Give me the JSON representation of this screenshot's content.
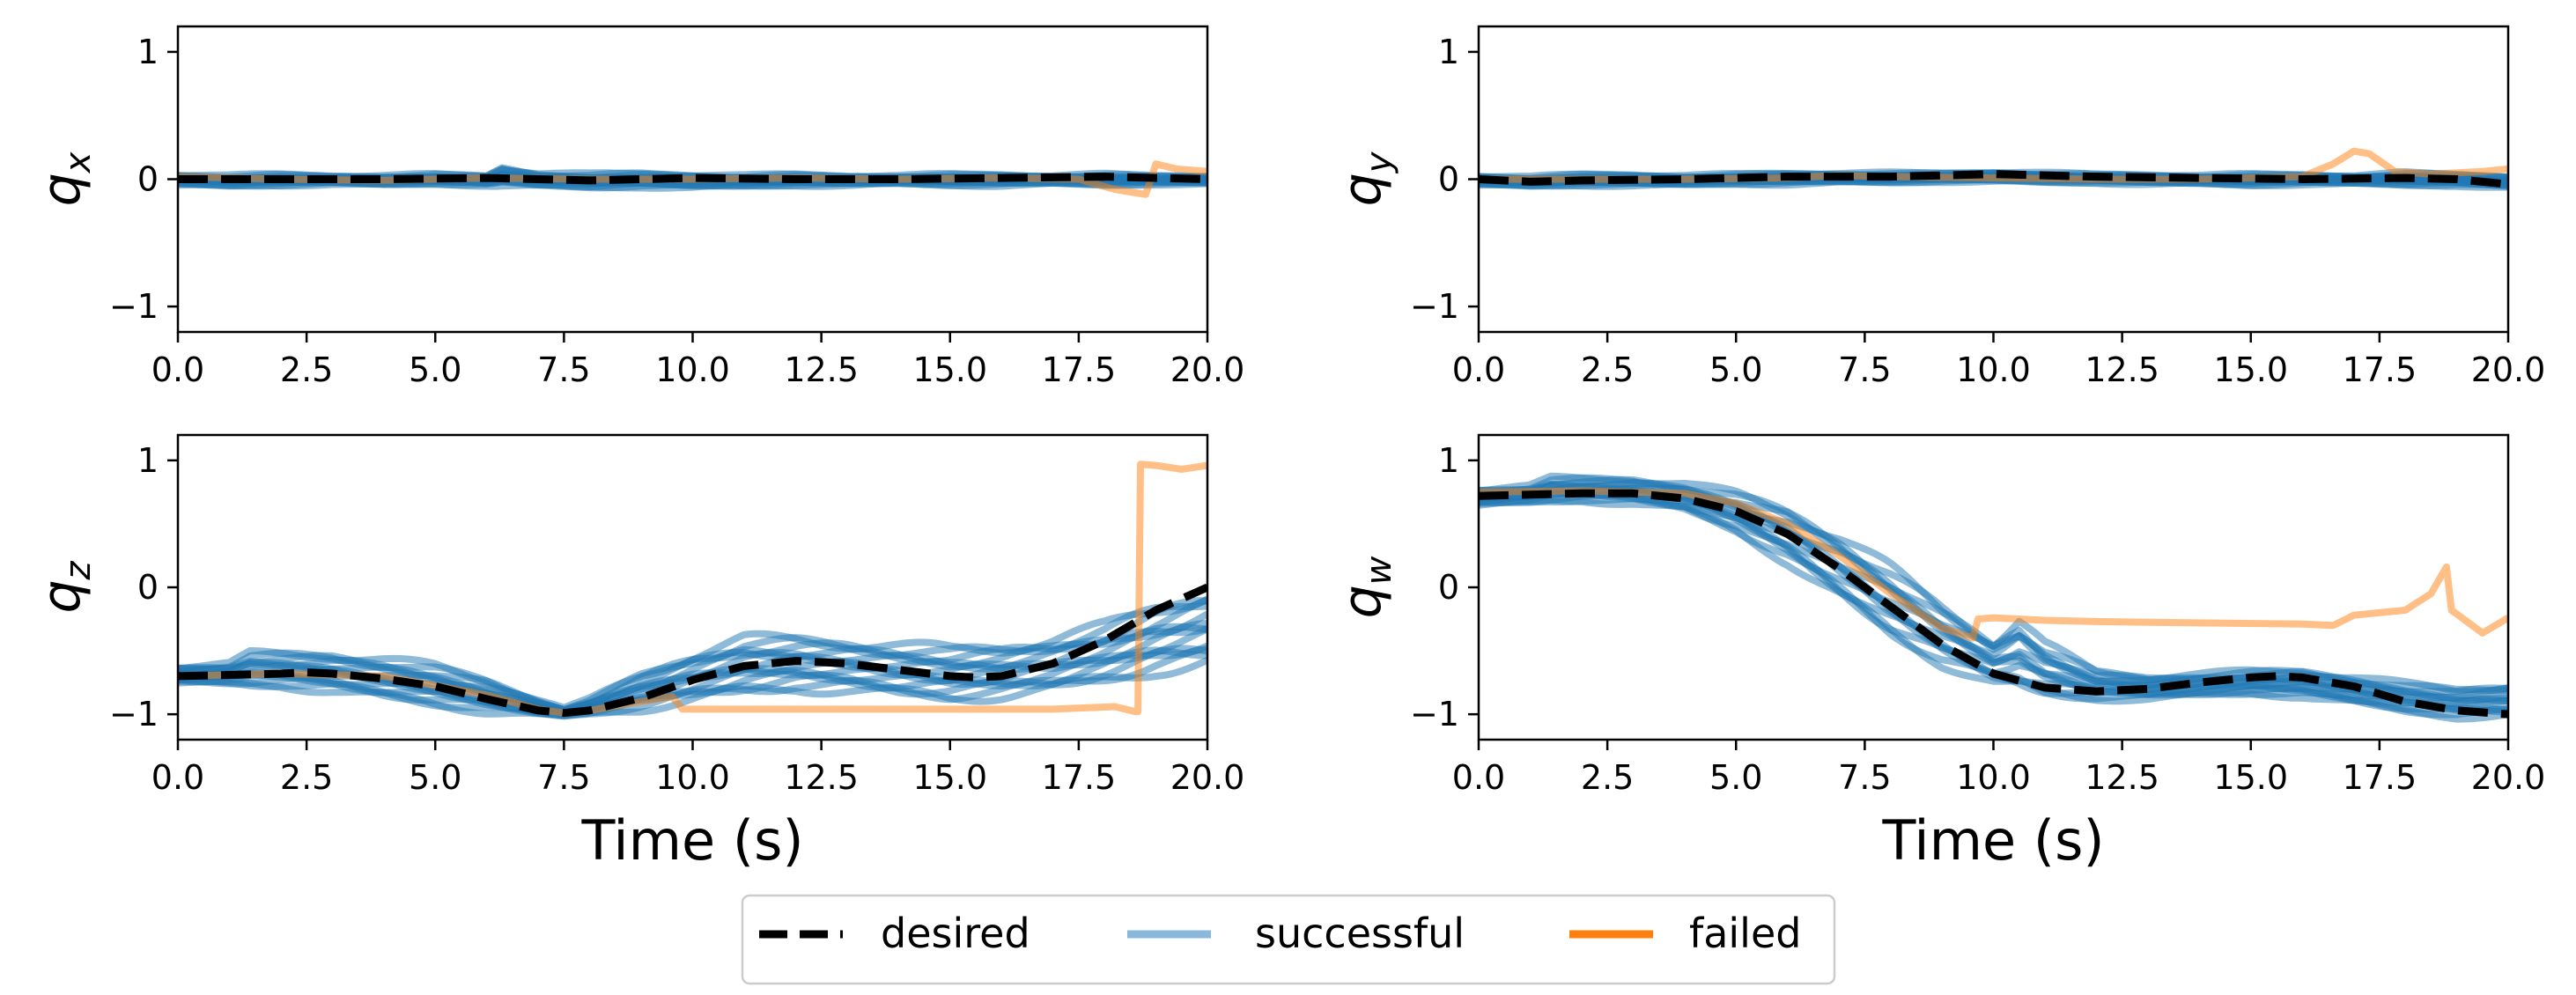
{
  "chart_data": [
    {
      "type": "line",
      "panel": "qx",
      "ylabel": {
        "main": "q",
        "sub": "x"
      },
      "xlabel": "",
      "xlim": [
        0,
        20
      ],
      "ylim": [
        -1.2,
        1.2
      ],
      "xticks": [
        "0.0",
        "2.5",
        "5.0",
        "7.5",
        "10.0",
        "12.5",
        "15.0",
        "17.5",
        "20.0"
      ],
      "yticks": [
        "−1",
        "0",
        "1"
      ],
      "series": [
        {
          "name": "desired",
          "style": "dashed",
          "color": "#000000",
          "x": [
            0,
            2,
            4,
            6,
            8,
            10,
            12,
            14,
            16,
            18,
            20
          ],
          "values": [
            0,
            0,
            0,
            0.01,
            -0.01,
            0.01,
            0.0,
            0.0,
            0.01,
            0.02,
            0.0
          ]
        },
        {
          "name": "successful",
          "style": "band",
          "color": "#1f77b4",
          "x": [
            0,
            1,
            2,
            3,
            4,
            5,
            6,
            6.3,
            7,
            8,
            9,
            10,
            11,
            12,
            13,
            14,
            15,
            16,
            17,
            18,
            19,
            20
          ],
          "upper": [
            0.04,
            0.03,
            0.04,
            0.03,
            0.03,
            0.04,
            0.03,
            0.1,
            0.05,
            0.04,
            0.05,
            0.04,
            0.03,
            0.04,
            0.03,
            0.03,
            0.04,
            0.04,
            0.03,
            0.04,
            0.03,
            0.03
          ],
          "lower": [
            -0.05,
            -0.06,
            -0.05,
            -0.04,
            -0.05,
            -0.04,
            -0.05,
            -0.05,
            -0.06,
            -0.07,
            -0.06,
            -0.07,
            -0.06,
            -0.05,
            -0.05,
            -0.04,
            -0.05,
            -0.05,
            -0.04,
            -0.05,
            -0.04,
            -0.04
          ]
        },
        {
          "name": "failed",
          "style": "solid",
          "color": "#ff7f0e",
          "x": [
            0,
            2,
            4,
            6,
            8,
            10,
            12,
            14,
            16,
            17.5,
            18.2,
            18.8,
            19.0,
            19.4,
            20
          ],
          "values": [
            0.02,
            0.0,
            -0.01,
            0.01,
            0.0,
            0.0,
            0.01,
            0.0,
            0.01,
            0.0,
            -0.08,
            -0.12,
            0.12,
            0.08,
            0.06
          ]
        }
      ]
    },
    {
      "type": "line",
      "panel": "qy",
      "ylabel": {
        "main": "q",
        "sub": "y"
      },
      "xlabel": "",
      "xlim": [
        0,
        20
      ],
      "ylim": [
        -1.2,
        1.2
      ],
      "xticks": [
        "0.0",
        "2.5",
        "5.0",
        "7.5",
        "10.0",
        "12.5",
        "15.0",
        "17.5",
        "20.0"
      ],
      "yticks": [
        "−1",
        "0",
        "1"
      ],
      "series": [
        {
          "name": "desired",
          "style": "dashed",
          "color": "#000000",
          "x": [
            0,
            1,
            2,
            4,
            6,
            8,
            10,
            12,
            14,
            16,
            18,
            19,
            20
          ],
          "values": [
            0.0,
            -0.02,
            -0.01,
            0.0,
            0.02,
            0.02,
            0.04,
            0.02,
            0.01,
            0.0,
            0.01,
            0.0,
            -0.04
          ]
        },
        {
          "name": "successful",
          "style": "band",
          "color": "#1f77b4",
          "x": [
            0,
            1,
            2,
            3,
            4,
            5,
            6,
            7,
            8,
            9,
            10,
            11,
            12,
            13,
            14,
            15,
            16,
            17,
            18,
            19,
            20
          ],
          "upper": [
            0.03,
            0.02,
            0.04,
            0.04,
            0.03,
            0.04,
            0.05,
            0.05,
            0.05,
            0.05,
            0.06,
            0.05,
            0.04,
            0.04,
            0.03,
            0.04,
            0.04,
            0.03,
            0.05,
            0.04,
            0.03
          ],
          "lower": [
            -0.05,
            -0.06,
            -0.05,
            -0.05,
            -0.05,
            -0.04,
            -0.04,
            -0.03,
            -0.03,
            -0.02,
            -0.02,
            -0.03,
            -0.03,
            -0.04,
            -0.04,
            -0.05,
            -0.04,
            -0.04,
            -0.05,
            -0.05,
            -0.07
          ]
        },
        {
          "name": "failed",
          "style": "solid",
          "color": "#ff7f0e",
          "x": [
            0,
            2,
            4,
            6,
            7,
            8,
            10,
            12,
            14,
            16,
            16.6,
            17.0,
            17.3,
            17.8,
            18.5,
            19.5,
            20
          ],
          "values": [
            0.0,
            0.0,
            0.0,
            0.01,
            0.03,
            0.02,
            0.01,
            0.0,
            0.0,
            0.02,
            0.12,
            0.22,
            0.2,
            0.06,
            0.04,
            0.06,
            0.08
          ]
        }
      ]
    },
    {
      "type": "line",
      "panel": "qz",
      "ylabel": {
        "main": "q",
        "sub": "z"
      },
      "xlabel": "Time (s)",
      "xlim": [
        0,
        20
      ],
      "ylim": [
        -1.2,
        1.2
      ],
      "xticks": [
        "0.0",
        "2.5",
        "5.0",
        "7.5",
        "10.0",
        "12.5",
        "15.0",
        "17.5",
        "20.0"
      ],
      "yticks": [
        "−1",
        "0",
        "1"
      ],
      "series": [
        {
          "name": "desired",
          "style": "dashed",
          "color": "#000000",
          "x": [
            0,
            1,
            2,
            2.5,
            3,
            4,
            5,
            6,
            7,
            7.5,
            8,
            9,
            10,
            11,
            12,
            13,
            14,
            15,
            15.5,
            16,
            17,
            18,
            19,
            20
          ],
          "values": [
            -0.7,
            -0.69,
            -0.68,
            -0.67,
            -0.68,
            -0.72,
            -0.78,
            -0.88,
            -0.97,
            -0.99,
            -0.97,
            -0.87,
            -0.73,
            -0.62,
            -0.58,
            -0.6,
            -0.65,
            -0.7,
            -0.71,
            -0.7,
            -0.6,
            -0.42,
            -0.18,
            0.0
          ]
        },
        {
          "name": "successful",
          "style": "band",
          "color": "#1f77b4",
          "x": [
            0,
            1,
            1.4,
            2,
            3,
            4,
            5,
            6,
            7,
            7.5,
            8,
            9,
            10,
            11,
            12,
            13,
            14,
            15,
            16,
            17,
            18,
            19,
            20
          ],
          "upper": [
            -0.62,
            -0.6,
            -0.52,
            -0.52,
            -0.52,
            -0.56,
            -0.62,
            -0.72,
            -0.88,
            -0.95,
            -0.88,
            -0.68,
            -0.52,
            -0.4,
            -0.4,
            -0.42,
            -0.45,
            -0.48,
            -0.46,
            -0.4,
            -0.3,
            -0.15,
            -0.02
          ],
          "lower": [
            -0.76,
            -0.77,
            -0.78,
            -0.78,
            -0.82,
            -0.88,
            -0.93,
            -0.98,
            -1.01,
            -1.02,
            -1.0,
            -0.96,
            -0.9,
            -0.84,
            -0.8,
            -0.82,
            -0.86,
            -0.88,
            -0.86,
            -0.82,
            -0.74,
            -0.66,
            -0.62
          ]
        },
        {
          "name": "failed",
          "style": "solid",
          "color": "#ff7f0e",
          "x": [
            0,
            2,
            4,
            6,
            7,
            7.5,
            8,
            9,
            9.6,
            9.8,
            10,
            11,
            12,
            14,
            16,
            17,
            18.2,
            18.6,
            18.65,
            18.7,
            19,
            19.5,
            20
          ],
          "values": [
            -0.7,
            -0.68,
            -0.7,
            -0.85,
            -0.96,
            -0.99,
            -0.97,
            -0.9,
            -0.86,
            -0.96,
            -0.96,
            -0.96,
            -0.96,
            -0.96,
            -0.96,
            -0.96,
            -0.94,
            -0.98,
            -0.98,
            0.97,
            0.96,
            0.93,
            0.96
          ]
        }
      ]
    },
    {
      "type": "line",
      "panel": "qw",
      "ylabel": {
        "main": "q",
        "sub": "w"
      },
      "xlabel": "Time (s)",
      "xlim": [
        0,
        20
      ],
      "ylim": [
        -1.2,
        1.2
      ],
      "xticks": [
        "0.0",
        "2.5",
        "5.0",
        "7.5",
        "10.0",
        "12.5",
        "15.0",
        "17.5",
        "20.0"
      ],
      "yticks": [
        "−1",
        "0",
        "1"
      ],
      "series": [
        {
          "name": "desired",
          "style": "dashed",
          "color": "#000000",
          "x": [
            0,
            1,
            2,
            2.5,
            3,
            4,
            5,
            6,
            7,
            8,
            9,
            10,
            11,
            12,
            13,
            14,
            15,
            15.5,
            16,
            17,
            18,
            19,
            20
          ],
          "values": [
            0.72,
            0.73,
            0.74,
            0.74,
            0.74,
            0.7,
            0.6,
            0.42,
            0.15,
            -0.15,
            -0.45,
            -0.68,
            -0.79,
            -0.82,
            -0.8,
            -0.75,
            -0.71,
            -0.7,
            -0.71,
            -0.78,
            -0.9,
            -0.97,
            -1.0
          ]
        },
        {
          "name": "successful",
          "style": "band",
          "color": "#1f77b4",
          "x": [
            0,
            1,
            1.4,
            2,
            3,
            4,
            5,
            6,
            7,
            8,
            9,
            10,
            10.5,
            11,
            12,
            13,
            14,
            15,
            16,
            17,
            18,
            19,
            20
          ],
          "upper": [
            0.78,
            0.8,
            0.86,
            0.86,
            0.86,
            0.82,
            0.74,
            0.62,
            0.42,
            0.15,
            -0.15,
            -0.42,
            -0.25,
            -0.45,
            -0.66,
            -0.7,
            -0.68,
            -0.66,
            -0.65,
            -0.7,
            -0.76,
            -0.8,
            -0.76
          ],
          "lower": [
            0.64,
            0.66,
            0.67,
            0.68,
            0.66,
            0.6,
            0.44,
            0.2,
            -0.1,
            -0.38,
            -0.6,
            -0.76,
            -0.82,
            -0.86,
            -0.88,
            -0.88,
            -0.86,
            -0.84,
            -0.86,
            -0.92,
            -0.98,
            -1.02,
            -1.02
          ]
        },
        {
          "name": "failed",
          "style": "solid",
          "color": "#ff7f0e",
          "x": [
            0,
            2,
            4,
            5,
            6,
            7,
            8,
            9,
            9.6,
            9.7,
            10,
            11,
            12,
            14,
            16,
            16.6,
            17,
            18,
            18.5,
            18.8,
            18.9,
            19.5,
            20
          ],
          "values": [
            0.75,
            0.76,
            0.74,
            0.66,
            0.5,
            0.25,
            -0.05,
            -0.32,
            -0.4,
            -0.25,
            -0.24,
            -0.26,
            -0.27,
            -0.28,
            -0.29,
            -0.3,
            -0.22,
            -0.18,
            -0.05,
            0.16,
            -0.18,
            -0.36,
            -0.24
          ]
        }
      ]
    }
  ],
  "legend": {
    "placement": "bottom-center",
    "entries": [
      {
        "label": "desired",
        "style": "dashed",
        "color": "#000000"
      },
      {
        "label": "successful",
        "style": "solid",
        "color": "#8ab8db"
      },
      {
        "label": "failed",
        "style": "solid",
        "color": "#ff7f0e"
      }
    ]
  },
  "colors": {
    "successful": "#1f77b4",
    "failed": "#ff7f0e",
    "desired": "#000000"
  }
}
